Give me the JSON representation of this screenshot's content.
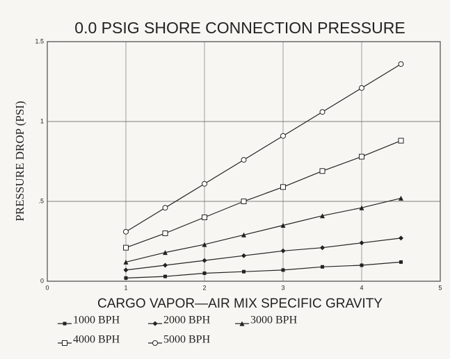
{
  "chart_data": {
    "type": "line",
    "title": "0.0 PSIG SHORE CONNECTION PRESSURE",
    "x_label": "CARGO VAPOR—AIR MIX SPECIFIC GRAVITY",
    "y_label": "PRESSURE DROP (PSI)",
    "x": [
      1,
      1.5,
      2,
      2.5,
      3,
      3.5,
      4,
      4.5
    ],
    "series": [
      {
        "name": "1000 BPH",
        "color": "#222222",
        "marker": "filled-square",
        "values": [
          0.02,
          0.03,
          0.05,
          0.06,
          0.07,
          0.09,
          0.1,
          0.12
        ]
      },
      {
        "name": "2000 BPH",
        "color": "#222222",
        "marker": "diamond",
        "values": [
          0.07,
          0.1,
          0.13,
          0.16,
          0.19,
          0.21,
          0.24,
          0.27
        ]
      },
      {
        "name": "3000 BPH",
        "color": "#222222",
        "marker": "triangle",
        "values": [
          0.12,
          0.18,
          0.23,
          0.29,
          0.35,
          0.41,
          0.46,
          0.52
        ]
      },
      {
        "name": "4000 BPH",
        "color": "#222222",
        "marker": "square",
        "values": [
          0.21,
          0.3,
          0.4,
          0.5,
          0.59,
          0.69,
          0.78,
          0.88
        ]
      },
      {
        "name": "5000 BPH",
        "color": "#222222",
        "marker": "circle",
        "values": [
          0.31,
          0.46,
          0.61,
          0.76,
          0.91,
          1.06,
          1.21,
          1.36
        ]
      }
    ],
    "xlim": [
      0,
      5
    ],
    "xticks": [
      0,
      1,
      2,
      3,
      4,
      5
    ],
    "ylim": [
      0,
      1.5
    ],
    "yticks": [
      0,
      {
        "value": 0.5,
        "label": ".5"
      },
      1,
      1.5
    ],
    "grid": true
  }
}
